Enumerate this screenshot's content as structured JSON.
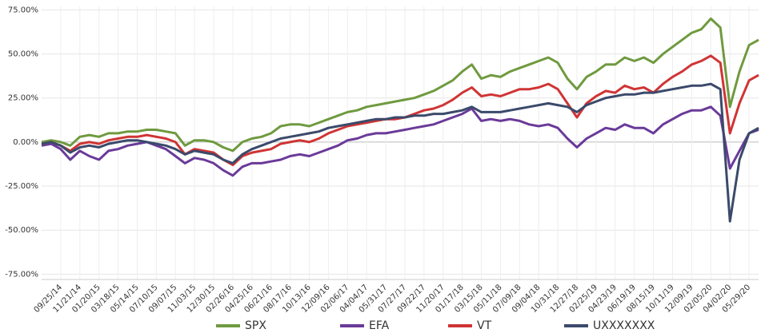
{
  "chart_data": {
    "type": "line",
    "categories": [
      null,
      null,
      "09/25/14",
      null,
      "11/21/14",
      null,
      "01/20/15",
      null,
      "03/18/15",
      null,
      "05/14/15",
      null,
      "07/10/15",
      null,
      "09/07/15",
      null,
      "11/03/15",
      null,
      "12/30/15",
      null,
      "02/26/16",
      null,
      "04/25/16",
      null,
      "06/21/16",
      null,
      "08/17/16",
      null,
      "10/13/16",
      null,
      "12/09/16",
      null,
      "02/06/17",
      null,
      "04/04/17",
      null,
      "05/31/17",
      null,
      "07/27/17",
      null,
      "09/22/17",
      null,
      "11/20/17",
      null,
      "01/17/18",
      null,
      "03/15/18",
      null,
      "05/11/18",
      null,
      "07/09/18",
      null,
      "09/04/18",
      null,
      "10/31/18",
      null,
      "12/27/18",
      null,
      "02/25/19",
      null,
      "04/23/19",
      null,
      "06/19/19",
      null,
      "08/15/19",
      null,
      "10/11/19",
      null,
      "12/09/19",
      null,
      "02/05/20",
      null,
      "04/02/20",
      null,
      "05/29/20",
      null
    ],
    "series": [
      {
        "name": "SPX",
        "color": "#6f9a3f",
        "values": [
          0,
          1,
          0,
          -2,
          3,
          4,
          3,
          5,
          5,
          6,
          6,
          7,
          7,
          6,
          5,
          -2,
          1,
          1,
          0,
          -3,
          -5,
          0,
          2,
          3,
          5,
          9,
          10,
          10,
          9,
          11,
          13,
          15,
          17,
          18,
          20,
          21,
          22,
          23,
          24,
          25,
          27,
          29,
          32,
          35,
          40,
          44,
          36,
          38,
          37,
          40,
          42,
          44,
          46,
          48,
          45,
          36,
          30,
          37,
          40,
          44,
          44,
          48,
          46,
          48,
          45,
          50,
          54,
          58,
          62,
          64,
          70,
          65,
          20,
          40,
          55,
          58
        ]
      },
      {
        "name": "EFA",
        "color": "#6a3a99",
        "values": [
          -2,
          -1,
          -4,
          -10,
          -5,
          -8,
          -10,
          -5,
          -4,
          -2,
          -1,
          0,
          -2,
          -4,
          -8,
          -12,
          -9,
          -10,
          -12,
          -16,
          -19,
          -14,
          -12,
          -12,
          -11,
          -10,
          -8,
          -7,
          -8,
          -6,
          -4,
          -2,
          1,
          2,
          4,
          5,
          5,
          6,
          7,
          8,
          9,
          10,
          12,
          14,
          16,
          19,
          12,
          13,
          12,
          13,
          12,
          10,
          9,
          10,
          8,
          2,
          -3,
          2,
          5,
          8,
          7,
          10,
          8,
          8,
          5,
          10,
          13,
          16,
          18,
          18,
          20,
          15,
          -15,
          -5,
          5,
          7
        ]
      },
      {
        "name": "VT",
        "color": "#d03434",
        "values": [
          -1,
          0,
          -2,
          -5,
          -1,
          0,
          -1,
          1,
          2,
          3,
          3,
          4,
          3,
          2,
          0,
          -7,
          -4,
          -5,
          -6,
          -10,
          -13,
          -8,
          -6,
          -5,
          -4,
          -1,
          0,
          1,
          0,
          2,
          5,
          7,
          9,
          10,
          11,
          12,
          13,
          13,
          14,
          16,
          18,
          19,
          21,
          24,
          28,
          31,
          26,
          27,
          26,
          28,
          30,
          30,
          31,
          33,
          30,
          22,
          14,
          22,
          26,
          29,
          28,
          32,
          30,
          31,
          28,
          33,
          37,
          40,
          44,
          46,
          49,
          45,
          5,
          22,
          35,
          38
        ]
      },
      {
        "name": "UXXXXXXX",
        "color": "#3b4a6b",
        "values": [
          -1,
          0,
          -2,
          -6,
          -3,
          -2,
          -3,
          -1,
          0,
          1,
          1,
          0,
          -1,
          -2,
          -4,
          -7,
          -5,
          -6,
          -7,
          -10,
          -12,
          -7,
          -4,
          -2,
          0,
          2,
          3,
          4,
          5,
          6,
          8,
          9,
          10,
          11,
          12,
          13,
          13,
          14,
          14,
          15,
          15,
          16,
          16,
          17,
          18,
          20,
          17,
          17,
          17,
          18,
          19,
          20,
          21,
          22,
          21,
          20,
          17,
          21,
          23,
          25,
          26,
          27,
          27,
          28,
          28,
          29,
          30,
          31,
          32,
          32,
          33,
          30,
          -45,
          -10,
          5,
          8
        ]
      }
    ],
    "ylim": [
      -78,
      77
    ],
    "yticks": [
      {
        "value": -75,
        "label": "-75.00%"
      },
      {
        "value": -50,
        "label": "-50.00%"
      },
      {
        "value": -25,
        "label": "-25.00%"
      },
      {
        "value": 0,
        "label": "0.00%"
      },
      {
        "value": 25,
        "label": "25.00%"
      },
      {
        "value": 50,
        "label": "50.00%"
      },
      {
        "value": 75,
        "label": "75.00%"
      }
    ],
    "grid": true,
    "legend": "bottom"
  }
}
